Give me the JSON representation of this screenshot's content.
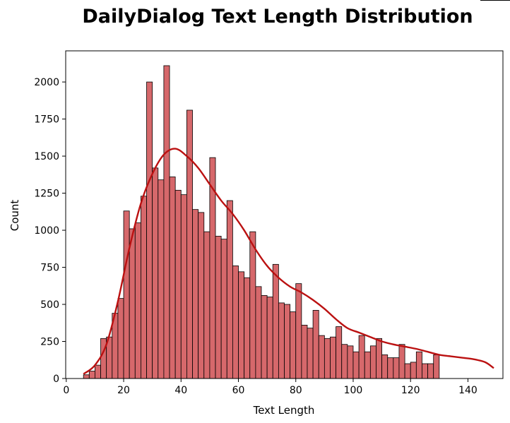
{
  "chart_data": {
    "type": "bar",
    "title": "DailyDialog Text Length Distribution",
    "xlabel": "Text Length",
    "ylabel": "Count",
    "xlim": [
      -0.2,
      152.2
    ],
    "ylim": [
      0,
      2210
    ],
    "xticks": [
      0,
      20,
      40,
      60,
      80,
      100,
      120,
      140
    ],
    "yticks": [
      0,
      250,
      500,
      750,
      1000,
      1250,
      1500,
      1750,
      2000
    ],
    "bin_start": 6,
    "bin_width": 2,
    "bar_color": "#d6686b",
    "bar_edge_color": "#000000",
    "kde_color": "#bb1111",
    "grid": false,
    "counts": [
      25,
      50,
      90,
      270,
      280,
      440,
      540,
      1130,
      1010,
      1050,
      1230,
      2000,
      1420,
      1340,
      2110,
      1360,
      1270,
      1240,
      1810,
      1140,
      1120,
      990,
      1490,
      960,
      940,
      1200,
      760,
      720,
      680,
      990,
      620,
      560,
      550,
      770,
      510,
      500,
      450,
      640,
      360,
      340,
      460,
      290,
      270,
      280,
      350,
      230,
      220,
      180,
      290,
      180,
      220,
      270,
      160,
      140,
      140,
      230,
      100,
      110,
      180,
      100,
      100,
      160
    ],
    "kde": {
      "x": [
        6,
        10,
        14,
        18,
        22,
        26,
        30,
        34,
        38,
        42,
        46,
        50,
        54,
        58,
        62,
        66,
        70,
        74,
        78,
        82,
        86,
        90,
        94,
        98,
        102,
        106,
        110,
        114,
        118,
        122,
        126,
        130,
        134,
        138,
        142,
        146,
        149
      ],
      "y": [
        30,
        90,
        230,
        520,
        880,
        1180,
        1380,
        1510,
        1550,
        1500,
        1420,
        1310,
        1200,
        1110,
        1000,
        870,
        760,
        680,
        620,
        580,
        530,
        470,
        400,
        340,
        310,
        280,
        250,
        230,
        215,
        200,
        180,
        160,
        150,
        140,
        130,
        110,
        70
      ]
    }
  }
}
